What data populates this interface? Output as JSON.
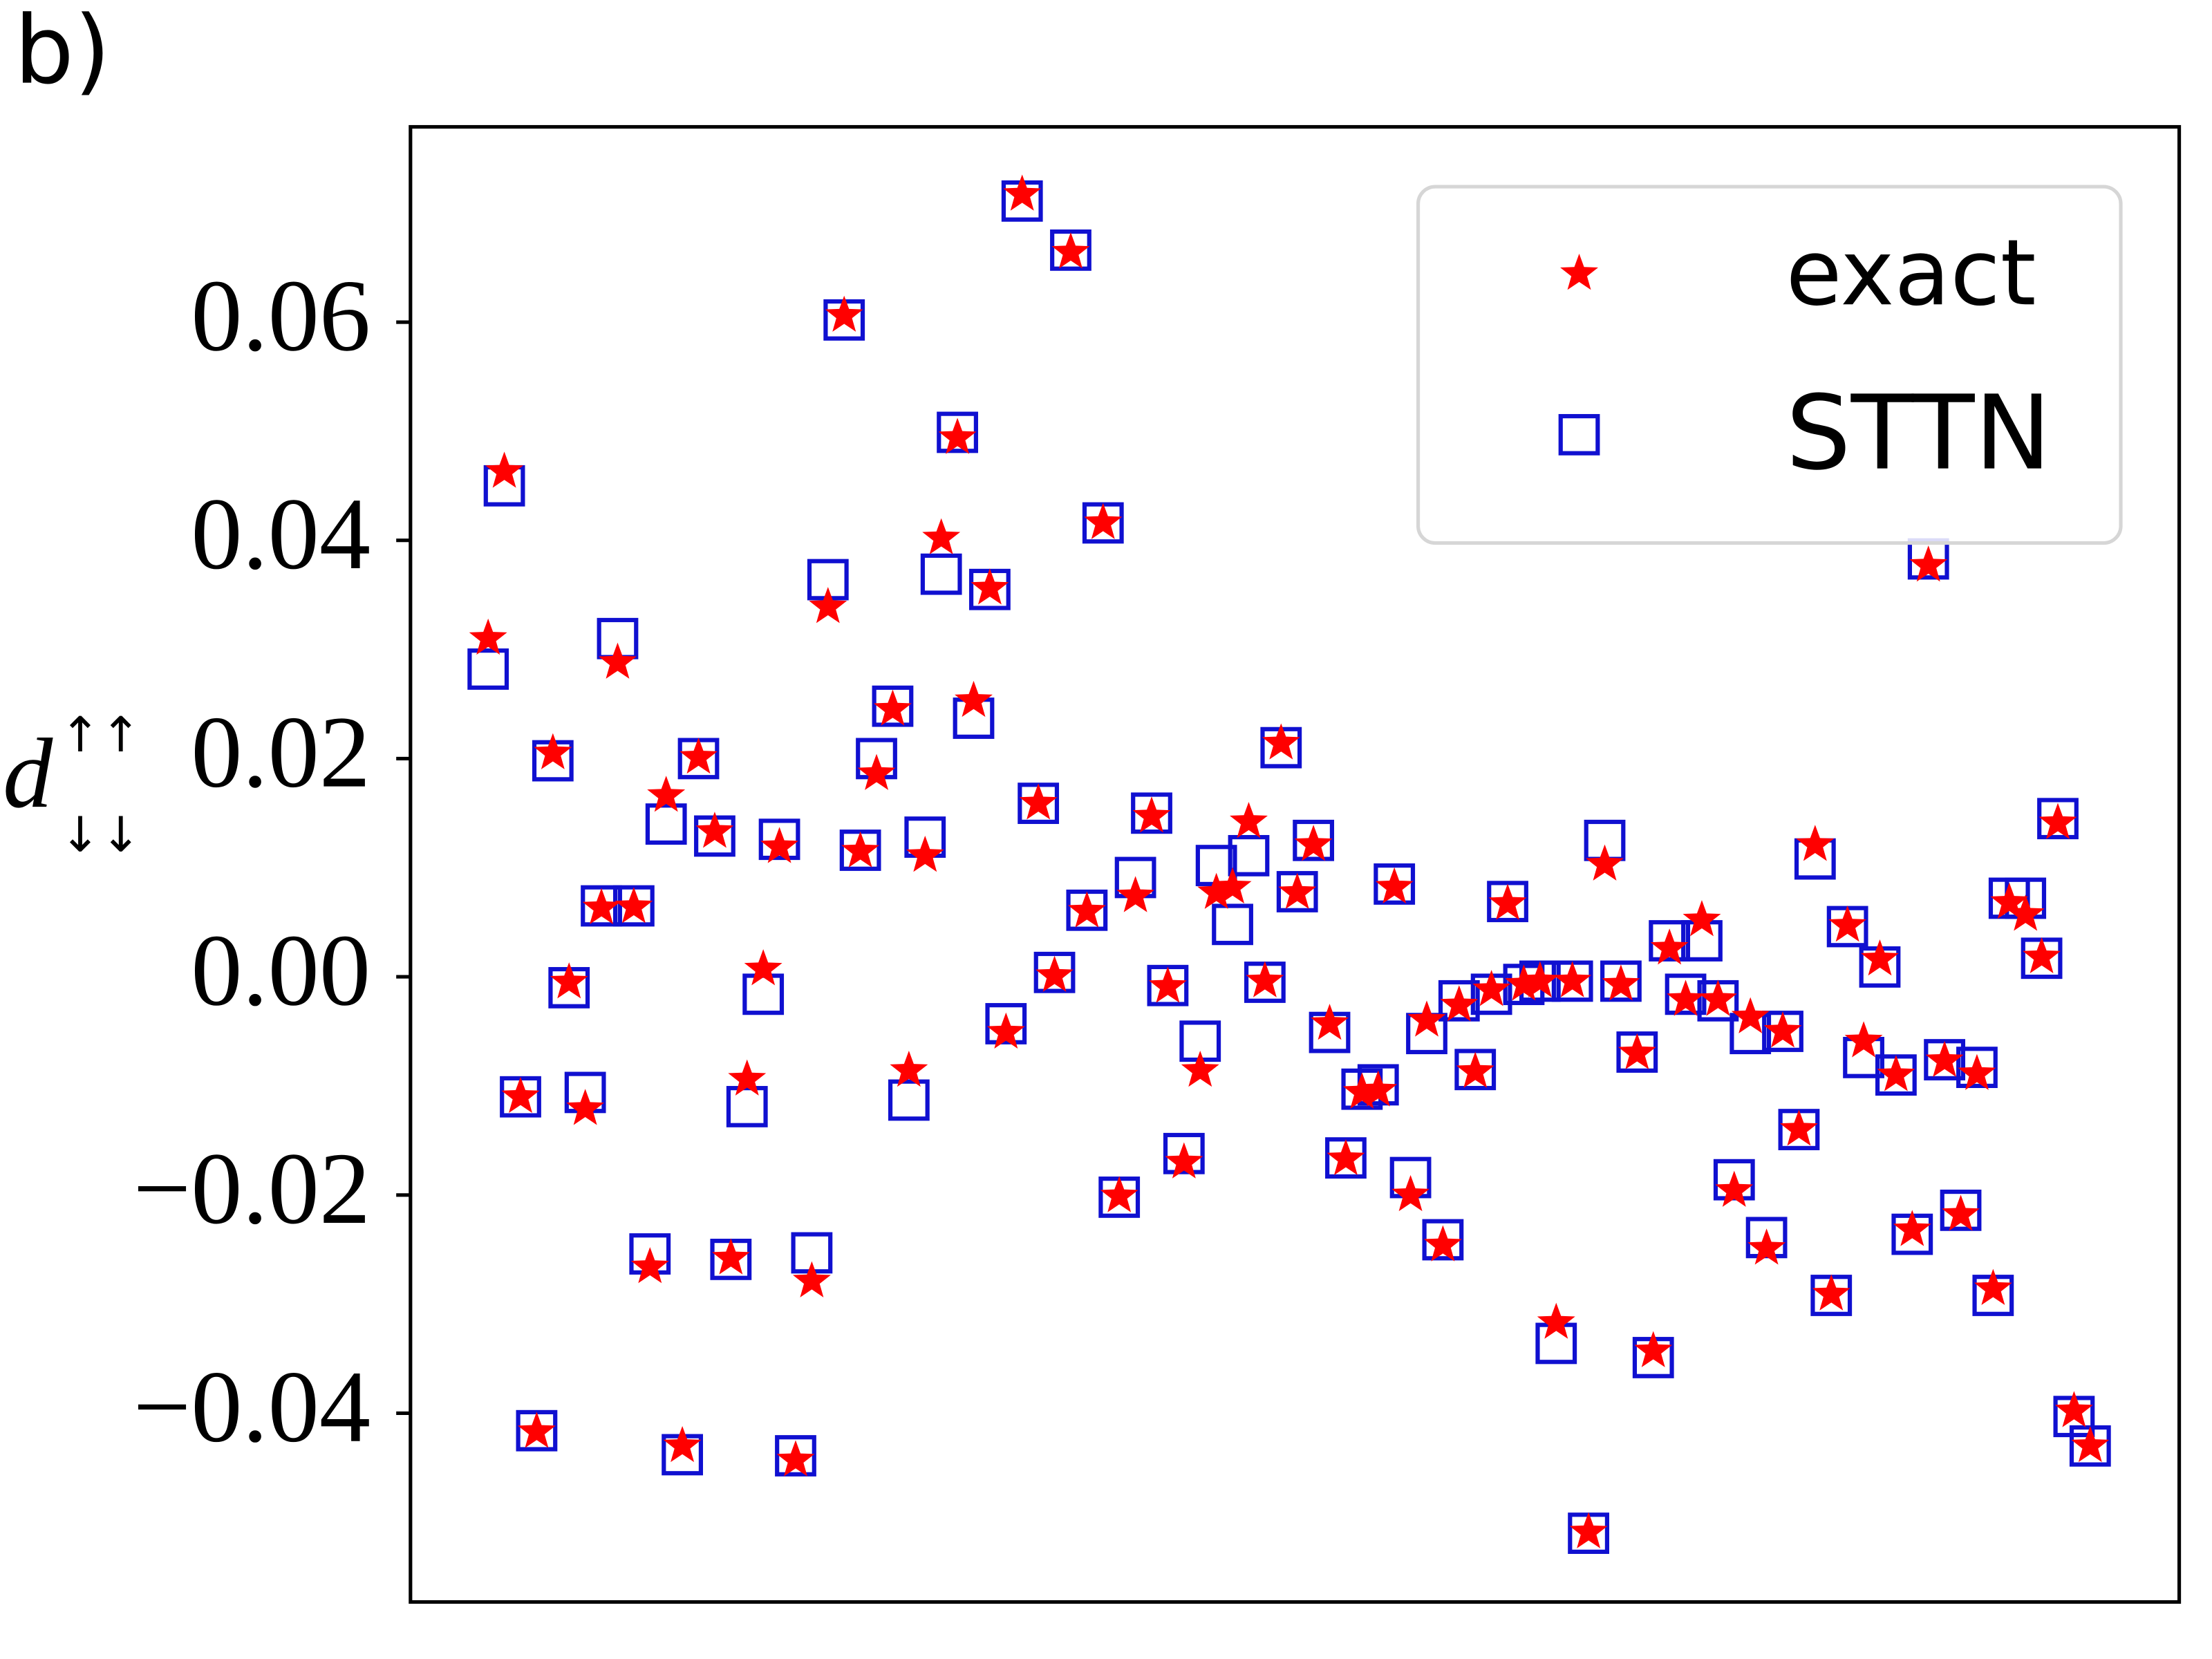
{
  "chart_data": {
    "type": "scatter",
    "title": "b)",
    "y_label": {
      "base": "d",
      "sup": "↑↑",
      "sub": "↓↓"
    },
    "x": [
      0,
      1,
      2,
      3,
      4,
      5,
      6,
      7,
      8,
      9,
      10,
      11,
      12,
      13,
      14,
      15,
      16,
      17,
      18,
      19,
      20,
      21,
      22,
      23,
      24,
      25,
      26,
      27,
      28,
      29,
      30,
      31,
      32,
      33,
      34,
      35,
      36,
      37,
      38,
      39,
      40,
      41,
      42,
      43,
      44,
      45,
      46,
      47,
      48,
      49,
      50,
      51,
      52,
      53,
      54,
      55,
      56,
      57,
      58,
      59,
      60,
      61,
      62,
      63,
      64,
      65,
      66,
      67,
      68,
      69,
      70,
      71,
      72,
      73,
      74,
      75,
      76,
      77,
      78,
      79,
      80,
      81,
      82,
      83,
      84,
      85,
      86,
      87,
      88,
      89,
      90,
      91,
      92,
      93,
      94,
      95,
      96,
      97,
      98,
      99
    ],
    "xlim": [
      -4.8,
      104.5
    ],
    "ylim": [
      -0.0573,
      0.0779
    ],
    "yticks": [
      {
        "value": -0.04,
        "label": "−0.04"
      },
      {
        "value": -0.02,
        "label": "−0.02"
      },
      {
        "value": 0,
        "label": "0.00"
      },
      0.02,
      0.04,
      0.06
    ],
    "legend": "upper right",
    "series": [
      {
        "name": "exact",
        "color": "#ff0000",
        "marker": "star",
        "values": [
          0.031,
          0.0463,
          -0.011,
          -0.0417,
          0.0205,
          -0.0005,
          -0.0121,
          0.0063,
          0.0288,
          0.0064,
          -0.0266,
          0.0166,
          -0.043,
          0.0201,
          0.0133,
          -0.0258,
          -0.0094,
          0.0007,
          0.0119,
          -0.0443,
          -0.0279,
          0.0339,
          0.0606,
          0.0115,
          0.0186,
          0.0245,
          -0.0086,
          0.0111,
          0.0402,
          0.0494,
          0.0253,
          0.0356,
          -0.0051,
          0.0717,
          0.0159,
          0.0001,
          0.0664,
          0.006,
          0.0416,
          -0.0201,
          0.0074,
          0.0147,
          -0.0009,
          -0.017,
          -0.0086,
          0.0077,
          0.0082,
          0.0142,
          -0.0004,
          0.0214,
          0.0077,
          0.0121,
          -0.0043,
          -0.0167,
          -0.0106,
          -0.0104,
          0.0082,
          -0.02,
          -0.004,
          -0.0246,
          -0.0026,
          -0.0087,
          -0.0012,
          0.0067,
          -0.0007,
          -0.0004,
          -0.0317,
          -0.0004,
          -0.0509,
          0.0103,
          -0.0007,
          -0.007,
          -0.0343,
          0.0026,
          -0.0021,
          0.0052,
          -0.0021,
          -0.0196,
          -0.0037,
          -0.0249,
          -0.005,
          -0.014,
          0.0121,
          -0.0291,
          0.0047,
          -0.0059,
          0.0016,
          -0.009,
          -0.0232,
          0.0377,
          -0.0077,
          -0.0218,
          -0.0089,
          -0.0286,
          0.0068,
          0.0057,
          0.0018,
          0.0141,
          -0.0398,
          -0.043
        ]
      },
      {
        "name": "STTN",
        "color": "#1010d0",
        "marker": "square",
        "values": [
          0.0282,
          0.045,
          -0.011,
          -0.0416,
          0.0198,
          -0.001,
          -0.0106,
          0.0065,
          0.031,
          0.0065,
          -0.0254,
          0.014,
          -0.0438,
          0.02,
          0.0129,
          -0.0259,
          -0.0119,
          -0.0016,
          0.0126,
          -0.0439,
          -0.0253,
          0.0364,
          0.0602,
          0.0116,
          0.02,
          0.0248,
          -0.0113,
          0.0128,
          0.0369,
          0.0499,
          0.0237,
          0.0355,
          -0.0043,
          0.0711,
          0.0159,
          0.0004,
          0.0666,
          0.0061,
          0.0416,
          -0.0202,
          0.0091,
          0.015,
          -0.0008,
          -0.0162,
          -0.0059,
          0.0102,
          0.0048,
          0.0111,
          -0.0005,
          0.021,
          0.0078,
          0.0125,
          -0.0051,
          -0.0166,
          -0.0103,
          -0.0099,
          0.0085,
          -0.0184,
          -0.0052,
          -0.0241,
          -0.0022,
          -0.0085,
          -0.0016,
          0.0069,
          -0.0007,
          -0.0004,
          -0.0336,
          -0.0004,
          -0.051,
          0.0125,
          -0.0004,
          -0.0069,
          -0.0349,
          0.0033,
          -0.0016,
          0.0033,
          -0.0022,
          -0.0186,
          -0.0052,
          -0.0239,
          -0.005,
          -0.014,
          0.0108,
          -0.0292,
          0.0046,
          -0.0074,
          0.0009,
          -0.009,
          -0.0236,
          0.0383,
          -0.0076,
          -0.0214,
          -0.0083,
          -0.0292,
          0.0072,
          0.0072,
          0.0017,
          0.0145,
          -0.0403,
          -0.043
        ]
      }
    ]
  }
}
